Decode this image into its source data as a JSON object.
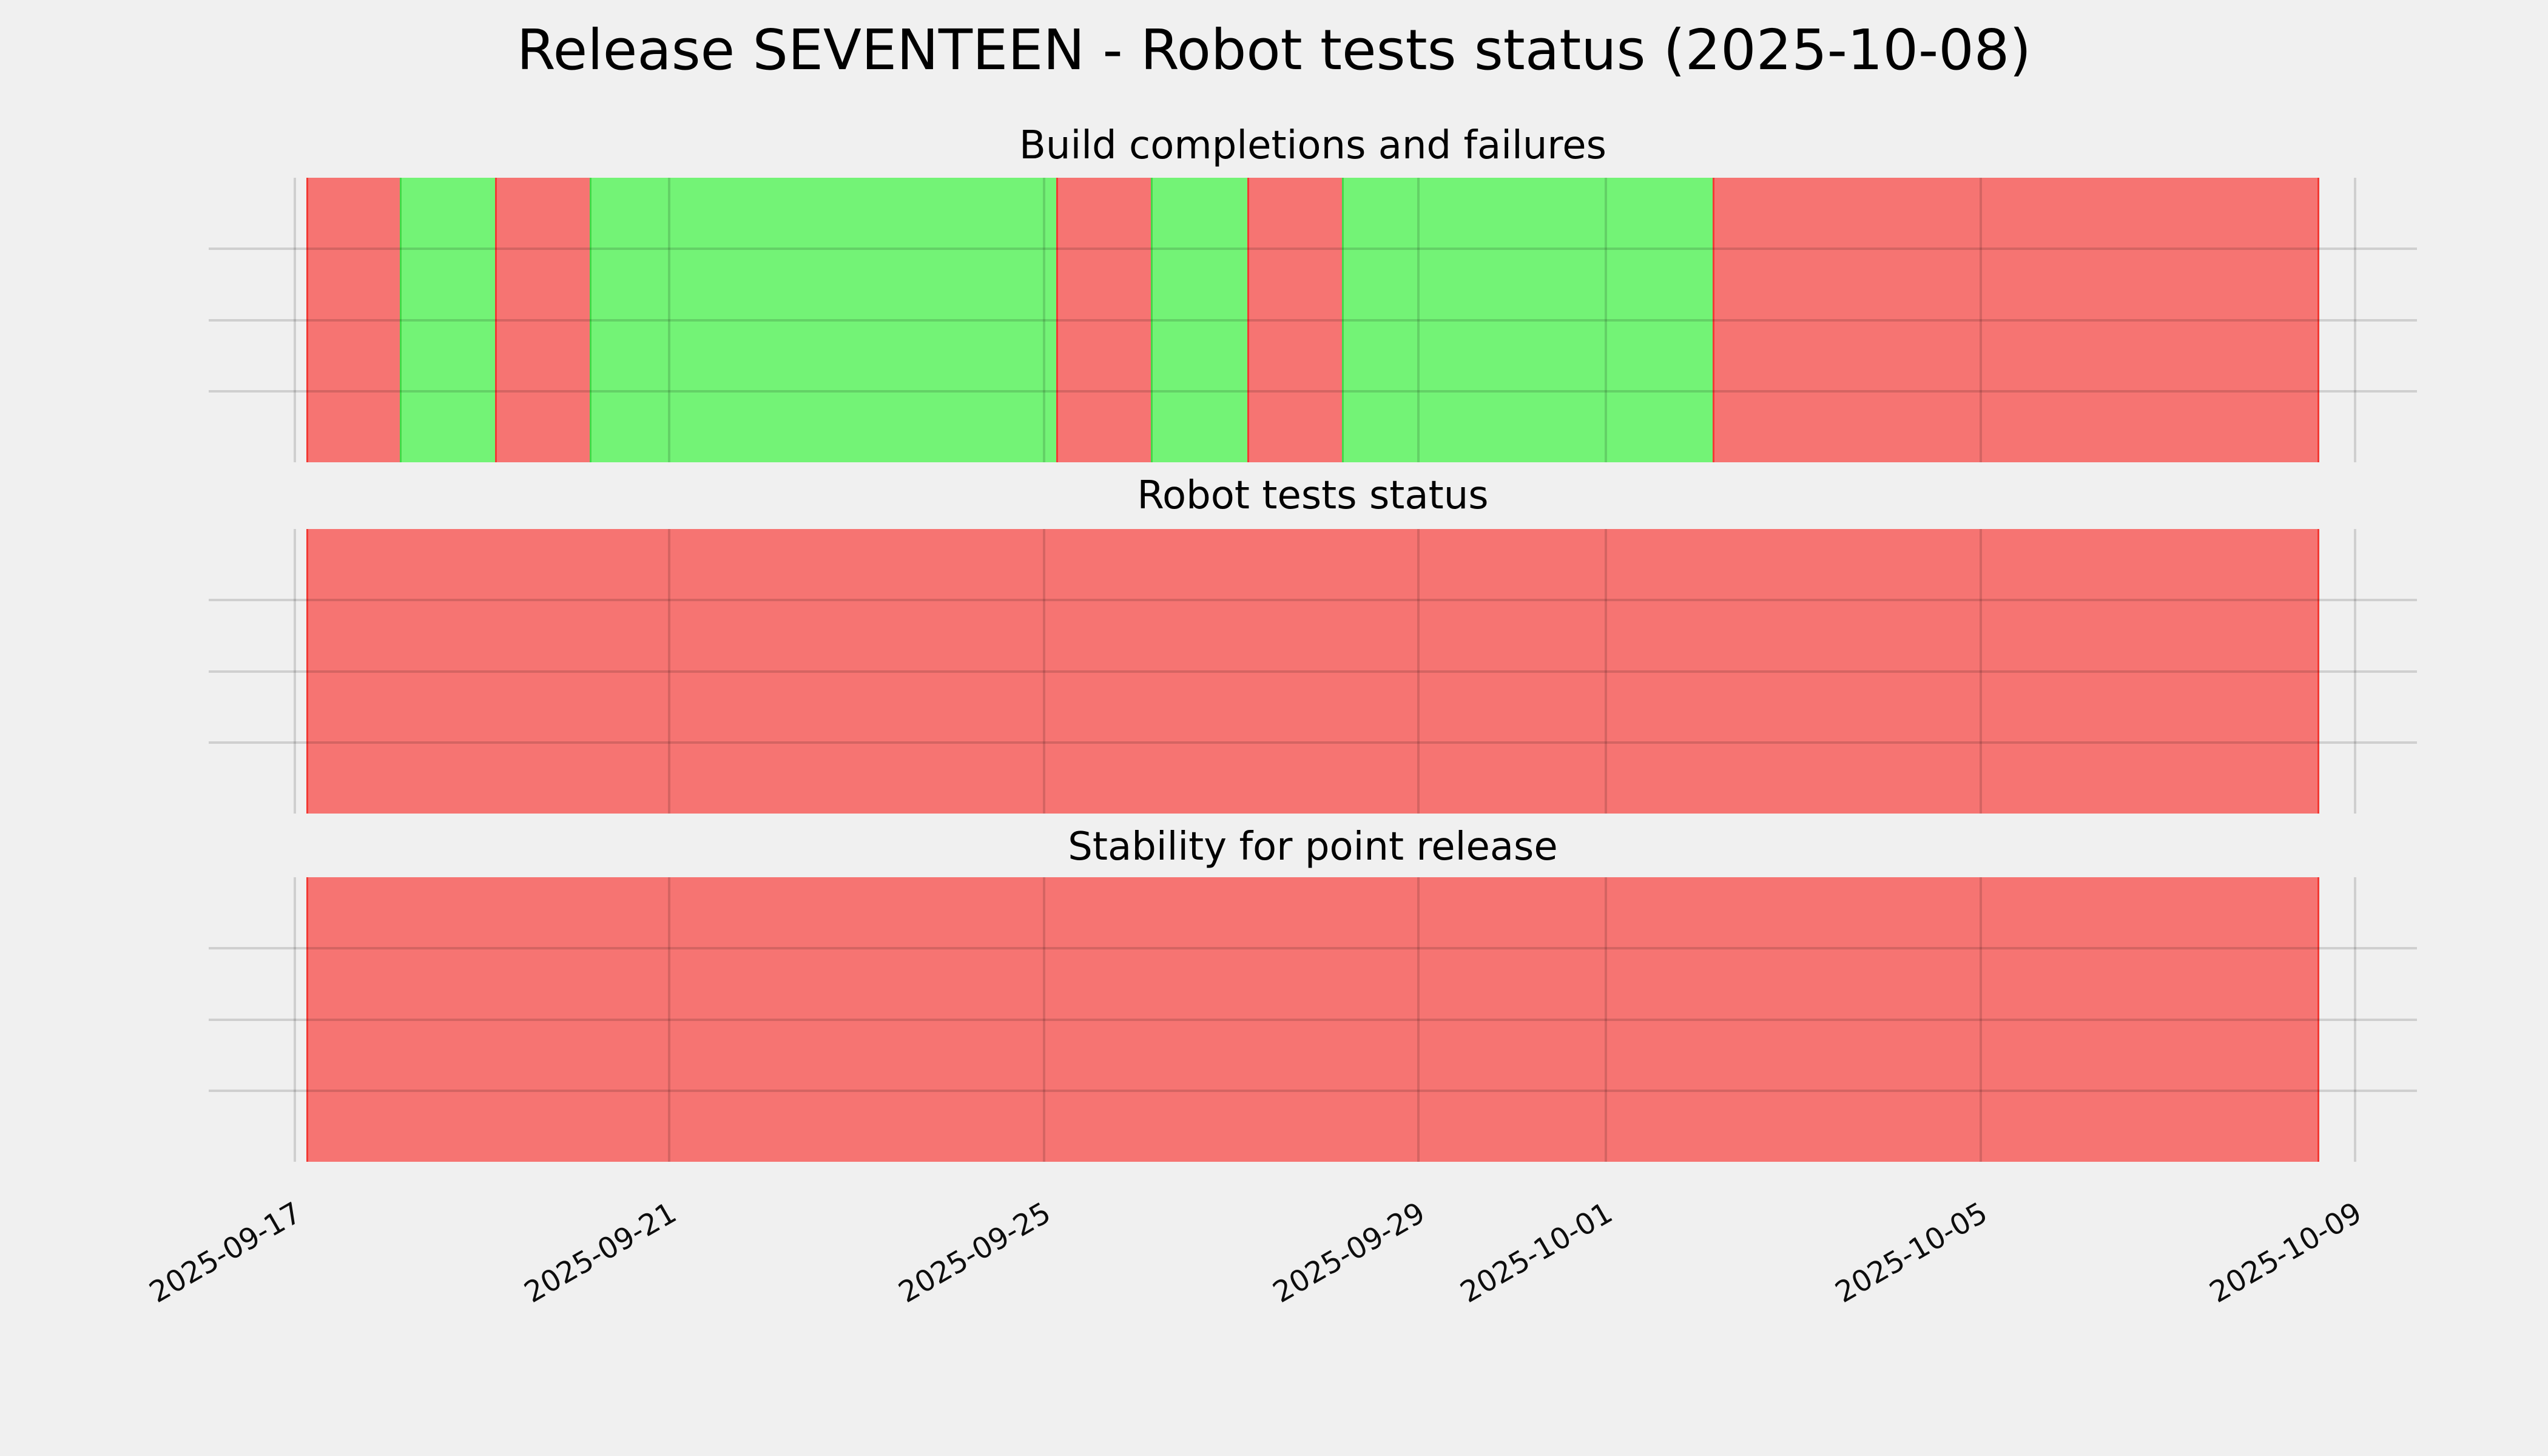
{
  "title": "Release SEVENTEEN - Robot tests status (2025-10-08)",
  "colors": {
    "background": "#f0f0f0",
    "grid": "#dcdcdc",
    "success_fill": "#73f376",
    "success_edge": "#44d848",
    "failure_fill": "#f67472",
    "failure_edge": "#f23a35",
    "text": "#000000"
  },
  "x_axis": {
    "start_date": "2025-09-17",
    "end_date": "2025-10-09",
    "span_days": 22,
    "min_day": -0.92,
    "max_day": 22.66,
    "tick_days": [
      0,
      4,
      8,
      12,
      14,
      18,
      22
    ],
    "tick_labels": [
      "2025-09-17",
      "2025-09-21",
      "2025-09-25",
      "2025-09-29",
      "2025-10-01",
      "2025-10-05",
      "2025-10-09"
    ],
    "tick_rotation_deg": 30
  },
  "grid": {
    "h_lines_per_panel": [
      0.25,
      0.5,
      0.75
    ],
    "shown": true
  },
  "chart_data": [
    {
      "type": "bar",
      "title": "Build completions and failures",
      "x_range": [
        "2025-09-17",
        "2025-10-09"
      ],
      "segments": [
        {
          "status": "failure",
          "start": "2025-09-17T03:00",
          "end": "2025-09-18T03:00",
          "start_day": 0.12,
          "end_day": 1.12
        },
        {
          "status": "success",
          "start": "2025-09-18T03:00",
          "end": "2025-09-19T03:20",
          "start_day": 1.12,
          "end_day": 2.14
        },
        {
          "status": "failure",
          "start": "2025-09-19T03:20",
          "end": "2025-09-20T03:35",
          "start_day": 2.14,
          "end_day": 3.15
        },
        {
          "status": "success",
          "start": "2025-09-20T03:35",
          "end": "2025-09-25T03:05",
          "start_day": 3.15,
          "end_day": 8.13
        },
        {
          "status": "failure",
          "start": "2025-09-25T03:05",
          "end": "2025-09-26T03:20",
          "start_day": 8.13,
          "end_day": 9.14
        },
        {
          "status": "success",
          "start": "2025-09-26T03:20",
          "end": "2025-09-27T04:05",
          "start_day": 9.14,
          "end_day": 10.17
        },
        {
          "status": "failure",
          "start": "2025-09-27T04:05",
          "end": "2025-09-28T04:20",
          "start_day": 10.17,
          "end_day": 11.18
        },
        {
          "status": "success",
          "start": "2025-09-28T04:20",
          "end": "2025-10-02T03:20",
          "start_day": 11.18,
          "end_day": 15.14
        },
        {
          "status": "failure",
          "start": "2025-10-02T03:20",
          "end": "2025-10-08T15:00",
          "start_day": 15.14,
          "end_day": 21.62
        }
      ]
    },
    {
      "type": "bar",
      "title": "Robot tests status",
      "x_range": [
        "2025-09-17",
        "2025-10-09"
      ],
      "segments": [
        {
          "status": "failure",
          "start": "2025-09-17T03:00",
          "end": "2025-10-08T15:00",
          "start_day": 0.12,
          "end_day": 21.62
        }
      ]
    },
    {
      "type": "bar",
      "title": "Stability for point release",
      "x_range": [
        "2025-09-17",
        "2025-10-09"
      ],
      "segments": [
        {
          "status": "failure",
          "start": "2025-09-17T03:00",
          "end": "2025-10-08T15:00",
          "start_day": 0.12,
          "end_day": 21.62
        }
      ]
    }
  ],
  "legend": {
    "success": "green (build/test OK)",
    "failure": "red (build/test failing)"
  }
}
